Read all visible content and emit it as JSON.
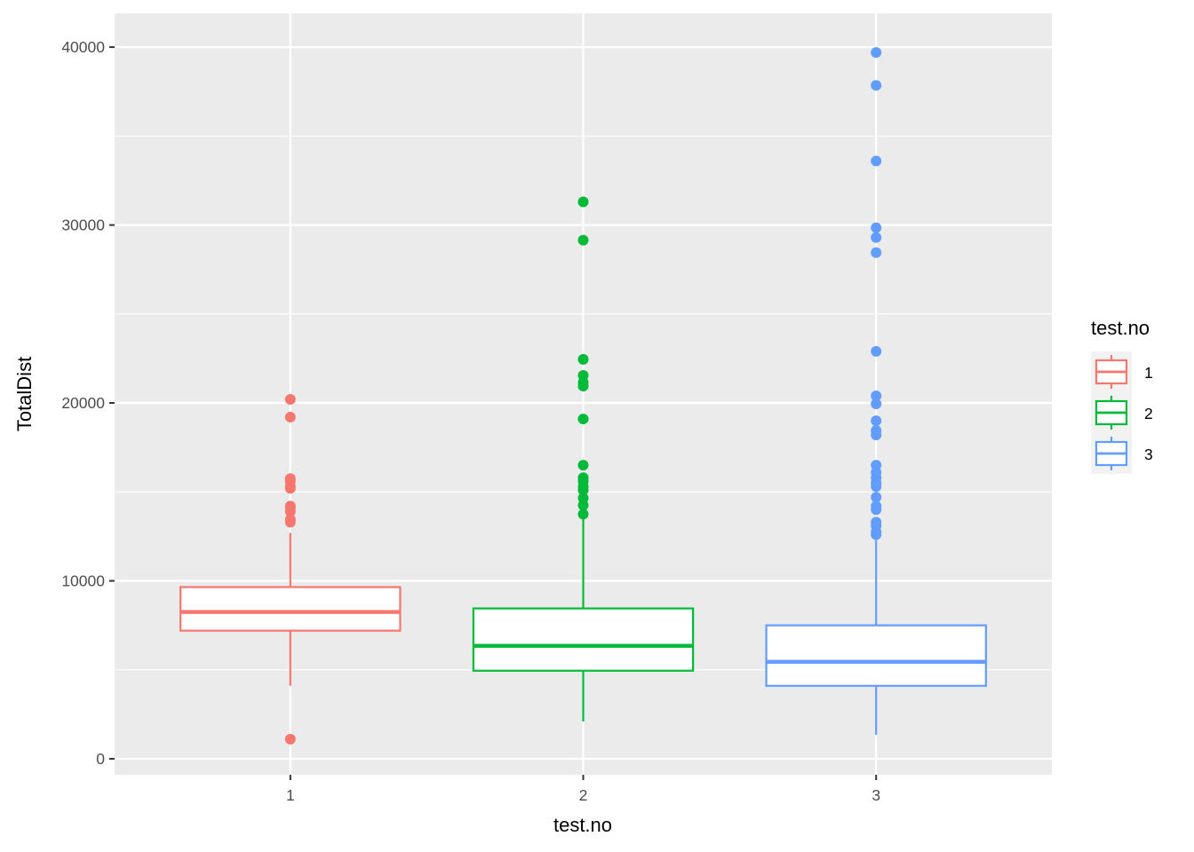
{
  "chart_data": {
    "type": "box",
    "xlabel": "test.no",
    "ylabel": "TotalDist",
    "categories": [
      "1",
      "2",
      "3"
    ],
    "ylim": [
      -900,
      41900
    ],
    "y_ticks": [
      0,
      10000,
      20000,
      30000,
      40000
    ],
    "y_tick_labels": [
      "0",
      "10000",
      "20000",
      "30000",
      "40000"
    ],
    "grid": true,
    "legend": {
      "title": "test.no",
      "position": "right",
      "entries": [
        "1",
        "2",
        "3"
      ]
    },
    "colors": {
      "1": "#F8766D",
      "2": "#00BA38",
      "3": "#619CFF",
      "panel_background": "#EBEBEB",
      "grid": "#FFFFFF"
    },
    "series": [
      {
        "category": "1",
        "whisker_low": 4100,
        "q1": 7200,
        "median": 8250,
        "q3": 9650,
        "whisker_high": 12700,
        "outliers": [
          1100,
          13300,
          13450,
          13900,
          14100,
          14200,
          15200,
          15300,
          15600,
          15750,
          19200,
          20200
        ]
      },
      {
        "category": "2",
        "whisker_low": 2100,
        "q1": 4950,
        "median": 6350,
        "q3": 8450,
        "whisker_high": 13500,
        "outliers": [
          13750,
          14250,
          14650,
          15100,
          15300,
          15600,
          15800,
          16500,
          19100,
          20950,
          21150,
          21550,
          22450,
          29150,
          31300
        ]
      },
      {
        "category": "3",
        "whisker_low": 1350,
        "q1": 4100,
        "median": 5450,
        "q3": 7500,
        "whisker_high": 12300,
        "outliers": [
          12600,
          12750,
          13100,
          13300,
          14000,
          14200,
          14700,
          15300,
          15500,
          15800,
          16100,
          16500,
          18200,
          18450,
          19000,
          19950,
          20400,
          22900,
          28450,
          29300,
          29850,
          33600,
          37850,
          39700
        ]
      }
    ]
  }
}
